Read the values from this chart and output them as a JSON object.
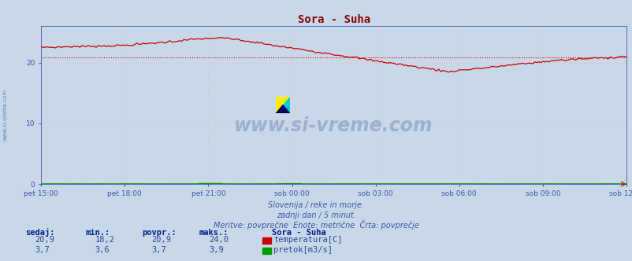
{
  "title": "Sora - Suha",
  "title_color": "#880000",
  "bg_color": "#c8d8e8",
  "plot_bg_color": "#c8d8e8",
  "grid_color": "#ffb0b0",
  "tick_color": "#4455aa",
  "axis_color": "#4455aa",
  "x_labels": [
    "pet 15:00",
    "pet 18:00",
    "pet 21:00",
    "sob 00:00",
    "sob 03:00",
    "sob 06:00",
    "sob 09:00",
    "sob 12:00"
  ],
  "x_positions": [
    0,
    36,
    72,
    108,
    144,
    180,
    216,
    252
  ],
  "y_ticks": [
    0,
    10,
    20
  ],
  "ylim": [
    0,
    26
  ],
  "xlim": [
    0,
    252
  ],
  "temp_avg": 20.9,
  "temp_color": "#cc0000",
  "flow_color": "#009900",
  "subtitle_lines": [
    "Slovenija / reke in morje.",
    "zadnji dan / 5 minut.",
    "Meritve: povprečne  Enote: metrične  Črta: povprečje"
  ],
  "subtitle_color": "#4455aa",
  "bold_color": "#002288",
  "info_color": "#334499",
  "legend_title": "Sora - Suha",
  "legend_temp_label": "temperatura[C]",
  "legend_flow_label": "pretok[m3/s]",
  "stats_headers": [
    "sedaj:",
    "min.:",
    "povpr.:",
    "maks.:"
  ],
  "stats_temp": [
    "20,9",
    "18,2",
    "20,9",
    "24,0"
  ],
  "stats_flow": [
    "3,7",
    "3,6",
    "3,7",
    "3,9"
  ],
  "watermark": "www.si-vreme.com",
  "watermark_color": "#1a3a8a",
  "watermark_alpha": 0.25,
  "left_text": "www.si-vreme.com"
}
